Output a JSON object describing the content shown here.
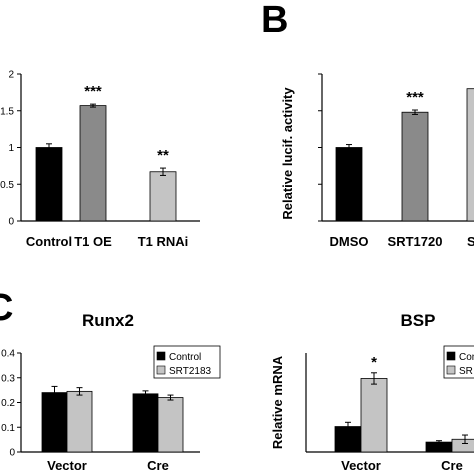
{
  "panel_letters": {
    "b": "B",
    "c": "C"
  },
  "chart_data": [
    {
      "id": "A",
      "type": "bar",
      "title": "",
      "ylabel": "",
      "ylim": [
        0,
        2
      ],
      "yticks": [
        "0",
        "0.5",
        "1",
        "1.5",
        "2"
      ],
      "categories": [
        "Control",
        "T1 OE",
        "T1 RNAi"
      ],
      "values": [
        1.0,
        1.57,
        0.67
      ],
      "errors": [
        0.05,
        0.02,
        0.05
      ],
      "colors": [
        "#000000",
        "#8a8a8a",
        "#c4c4c4"
      ],
      "annotations": [
        "",
        "***",
        "**"
      ]
    },
    {
      "id": "B",
      "type": "bar",
      "title": "",
      "ylabel": "Relative lucif. activity",
      "ylim": [
        0,
        2
      ],
      "yticks": [
        "",
        "",
        "",
        "",
        ""
      ],
      "categories": [
        "DMSO",
        "SRT1720",
        "SRT"
      ],
      "values": [
        1.0,
        1.48,
        1.8
      ],
      "errors": [
        0.04,
        0.03,
        0.0
      ],
      "colors": [
        "#000000",
        "#8a8a8a",
        "#c4c4c4"
      ],
      "annotations": [
        "",
        "***",
        ""
      ]
    },
    {
      "id": "C1",
      "type": "bar",
      "title": "Runx2",
      "ylabel": "",
      "ylim": [
        0,
        0.4
      ],
      "yticks": [
        "0",
        "0.1",
        "0.2",
        "0.3",
        "0.4"
      ],
      "categories": [
        "Vector",
        "Cre"
      ],
      "series": [
        {
          "name": "Control",
          "values": [
            0.24,
            0.235
          ],
          "errors": [
            0.025,
            0.012
          ],
          "color": "#000000"
        },
        {
          "name": "SRT2183",
          "values": [
            0.245,
            0.22
          ],
          "errors": [
            0.015,
            0.01
          ],
          "color": "#c4c4c4"
        }
      ],
      "annotations": [],
      "legend": "top-right"
    },
    {
      "id": "C2",
      "type": "bar",
      "title": "BSP",
      "ylabel": "Relative mRNA",
      "ylim": [
        0,
        0.35
      ],
      "yticks": [],
      "categories": [
        "Vector",
        "Cre"
      ],
      "series": [
        {
          "name": "Con",
          "values": [
            0.09,
            0.035
          ],
          "errors": [
            0.015,
            0.005
          ],
          "color": "#000000"
        },
        {
          "name": "SR",
          "values": [
            0.26,
            0.045
          ],
          "errors": [
            0.02,
            0.015
          ],
          "color": "#c4c4c4"
        }
      ],
      "annotations": [
        "*"
      ],
      "legend": "top-right"
    }
  ]
}
